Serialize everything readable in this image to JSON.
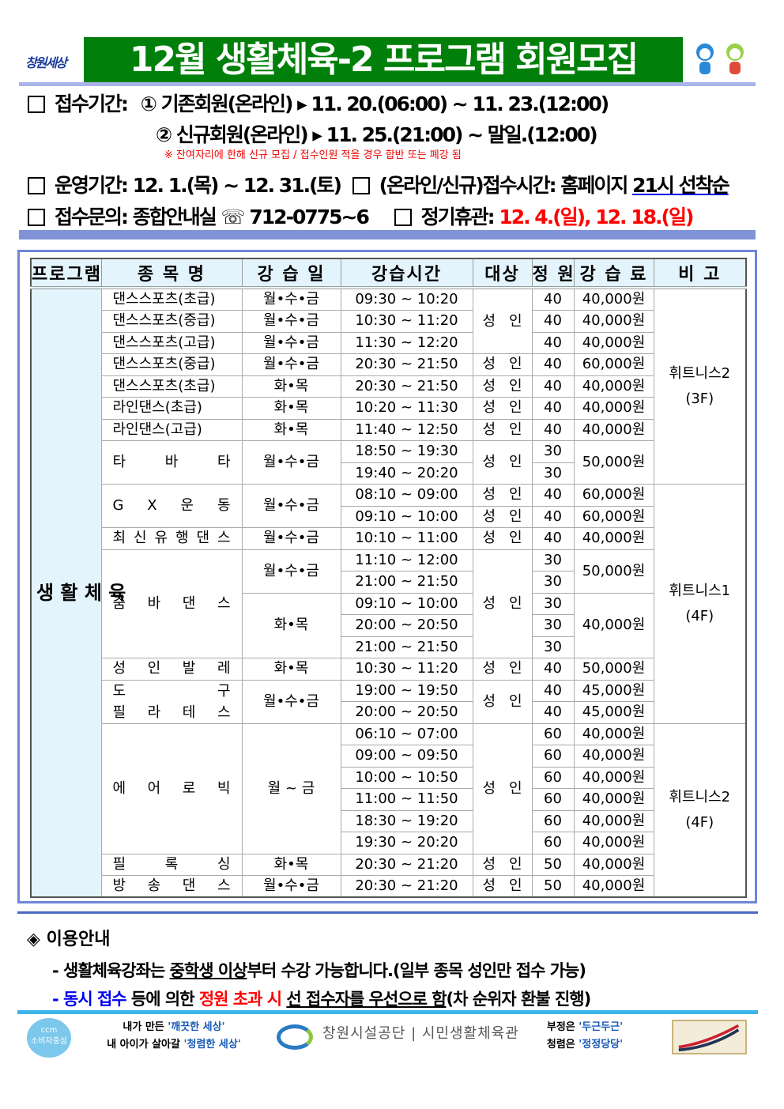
{
  "header": {
    "logo_text": "창원세상",
    "title": "12월 생활체육-2 프로그램 회원모집"
  },
  "info": {
    "reception_label": "접수기간:",
    "reception_1": "① 기존회원(온라인) ▸ 11. 20.(06:00) ~ 11. 23.(12:00)",
    "reception_2": "② 신규회원(온라인) ▸ 11. 25.(21:00) ~ 말일.(12:00)",
    "note": "※ 잔여자리에 한해 신규 모집 / 접수인원 적을 경우 합반 또는 폐강 됨",
    "operation_label": "운영기간:",
    "operation_value": "12. 1.(목) ~ 12. 31.(토)",
    "online_label": "(온라인/신규)접수시간:",
    "online_value": "홈페이지",
    "online_value_ul": "21시 선착순",
    "inquiry_label": "접수문의:",
    "inquiry_value": "종합안내실 ☏ 712-0775~6",
    "closed_label": "정기휴관:",
    "closed_value": "12. 4.(일), 12. 18.(일)"
  },
  "table": {
    "headers": [
      "프로그램",
      "종 목 명",
      "강 습 일",
      "강습시간",
      "대상",
      "정 원",
      "강 습 료",
      "비 고"
    ],
    "program": "생 활 체 육",
    "rows": [
      {
        "name": "댄스스포츠(초급)",
        "day": "월•수•금",
        "time": "09:30 ~ 10:20",
        "target": {
          "text": "성 인",
          "span": 3
        },
        "cap": "40",
        "fee": {
          "text": "40,000원",
          "span": 1
        },
        "note": {
          "text": [
            "휘트니스2",
            "(3F)"
          ],
          "span": 9
        }
      },
      {
        "name": "댄스스포츠(중급)",
        "day": "월•수•금",
        "time": "10:30 ~ 11:20",
        "cap": "40",
        "fee": {
          "text": "40,000원",
          "span": 1
        }
      },
      {
        "name": "댄스스포츠(고급)",
        "day": "월•수•금",
        "time": "11:30 ~ 12:20",
        "cap": "40",
        "fee": {
          "text": "40,000원",
          "span": 1
        }
      },
      {
        "name": "댄스스포츠(중급)",
        "day": "월•수•금",
        "time": "20:30 ~ 21:50",
        "target": {
          "text": "성 인",
          "span": 1
        },
        "cap": "40",
        "fee": {
          "text": "60,000원",
          "span": 1
        }
      },
      {
        "name": "댄스스포츠(초급)",
        "day": "화•목",
        "time": "20:30 ~ 21:50",
        "target": {
          "text": "성 인",
          "span": 1
        },
        "cap": "40",
        "fee": {
          "text": "40,000원",
          "span": 1
        }
      },
      {
        "name": "라인댄스(초급)",
        "day": "화•목",
        "time": "10:20 ~ 11:30",
        "target": {
          "text": "성 인",
          "span": 1
        },
        "cap": "40",
        "fee": {
          "text": "40,000원",
          "span": 1
        }
      },
      {
        "name": "라인댄스(고급)",
        "day": "화•목",
        "time": "11:40 ~ 12:50",
        "target": {
          "text": "성 인",
          "span": 1
        },
        "cap": "40",
        "fee": {
          "text": "40,000원",
          "span": 1
        }
      },
      {
        "name": {
          "text": "타 바 타",
          "span": 2
        },
        "day": {
          "text": "월•수•금",
          "span": 2
        },
        "time": "18:50 ~ 19:30",
        "target": {
          "text": "성 인",
          "span": 2
        },
        "cap": "30",
        "fee": {
          "text": "50,000원",
          "span": 2
        }
      },
      {
        "time": "19:40 ~ 20:20",
        "cap": "30"
      },
      {
        "name": {
          "text": "G X 운 동",
          "span": 2
        },
        "day": {
          "text": "월•수•금",
          "span": 2
        },
        "time": "08:10 ~ 09:00",
        "target": {
          "text": "성 인",
          "span": 1
        },
        "cap": "40",
        "fee": {
          "text": "60,000원",
          "span": 1
        },
        "note": {
          "text": [
            "휘트니스1",
            "(4F)"
          ],
          "span": 11
        }
      },
      {
        "time": "09:10 ~ 10:00",
        "target": {
          "text": "성 인",
          "span": 1
        },
        "cap": "40",
        "fee": {
          "text": "60,000원",
          "span": 1
        }
      },
      {
        "name": "최 신 유 행 댄 스",
        "day": "월•수•금",
        "time": "10:10 ~ 11:00",
        "target": {
          "text": "성 인",
          "span": 1
        },
        "cap": "40",
        "fee": {
          "text": "40,000원",
          "span": 1
        }
      },
      {
        "name": {
          "text": "줌 바 댄 스",
          "span": 5
        },
        "day": {
          "text": "월•수•금",
          "span": 2
        },
        "time": "11:10 ~ 12:00",
        "target": {
          "text": "성 인",
          "span": 5
        },
        "cap": "30",
        "fee": {
          "text": "50,000원",
          "span": 2
        }
      },
      {
        "time": "21:00 ~ 21:50",
        "cap": "30"
      },
      {
        "day": {
          "text": "화•목",
          "span": 3
        },
        "time": "09:10 ~ 10:00",
        "cap": "30",
        "fee": {
          "text": "40,000원",
          "span": 3
        }
      },
      {
        "time": "20:00 ~ 20:50",
        "cap": "30"
      },
      {
        "time": "21:00 ~ 21:50",
        "cap": "30"
      },
      {
        "name": "성 인 발 레",
        "day": "화•목",
        "time": "10:30 ~ 11:20",
        "target": {
          "text": "성 인",
          "span": 1
        },
        "cap": "40",
        "fee": {
          "text": "50,000원",
          "span": 1
        }
      },
      {
        "name": {
          "text": "도 구",
          "text2": "필 라 테 스",
          "span": 2
        },
        "day": {
          "text": "월•수•금",
          "span": 2
        },
        "time": "19:00 ~ 19:50",
        "target": {
          "text": "성 인",
          "span": 2
        },
        "cap": "40",
        "fee": {
          "text": "45,000원",
          "span": 1
        }
      },
      {
        "time": "20:00 ~ 20:50",
        "cap": "40",
        "fee": {
          "text": "45,000원",
          "span": 1
        }
      },
      {
        "name": {
          "text": "에 어 로 빅",
          "span": 6
        },
        "day": {
          "text": "월 ~ 금",
          "span": 6
        },
        "time": "06:10 ~ 07:00",
        "target": {
          "text": "성 인",
          "span": 6
        },
        "cap": "60",
        "fee": {
          "text": "40,000원",
          "span": 1
        },
        "note": {
          "text": [
            "휘트니스2",
            "(4F)"
          ],
          "span": 8
        }
      },
      {
        "time": "09:00 ~ 09:50",
        "cap": "60",
        "fee": {
          "text": "40,000원",
          "span": 1
        }
      },
      {
        "time": "10:00 ~ 10:50",
        "cap": "60",
        "fee": {
          "text": "40,000원",
          "span": 1
        }
      },
      {
        "time": "11:00 ~ 11:50",
        "cap": "60",
        "fee": {
          "text": "40,000원",
          "span": 1
        }
      },
      {
        "time": "18:30 ~ 19:20",
        "cap": "60",
        "fee": {
          "text": "40,000원",
          "span": 1
        }
      },
      {
        "time": "19:30 ~ 20:20",
        "cap": "60",
        "fee": {
          "text": "40,000원",
          "span": 1
        }
      },
      {
        "name": "필 록 싱",
        "day": "화•목",
        "time": "20:30 ~ 21:20",
        "target": {
          "text": "성 인",
          "span": 1
        },
        "cap": "50",
        "fee": {
          "text": "40,000원",
          "span": 1
        }
      },
      {
        "name": "방 송 댄 스",
        "day": "월•수•금",
        "time": "20:30 ~ 21:20",
        "target": {
          "text": "성 인",
          "span": 1
        },
        "cap": "50",
        "fee": {
          "text": "40,000원",
          "span": 1
        }
      }
    ]
  },
  "guide": {
    "title": "◈ 이용안내",
    "line1_a": "- 생활체육강좌는 ",
    "line1_ul": "중학생 이상",
    "line1_b": "부터 수강 가능합니다.(일부 종목 성인만 접수 가능)",
    "line2_dash": "- ",
    "line2_blue": "동시 접수",
    "line2_a": " 등에 의한 ",
    "line2_red": "정원 초과 시",
    "line2_sp": " ",
    "line2_ul": "선 접수자를 우선으로 함",
    "line2_b": "(차 순위자 환불 진행)"
  },
  "footer": {
    "ccm_1": "ccm",
    "ccm_2": "소비자중심",
    "slogan1_a": "내가 만든 ",
    "slogan1_b": "'깨끗한 세상'",
    "slogan2_a": "내 아이가 살아갈 ",
    "slogan2_b": "'청렴한 세상'",
    "corp": "창원시설공단 | 시민생활체육관",
    "slogan3_a": "부정은 ",
    "slogan3_b": "'두근두근'",
    "slogan4_a": "청렴은 ",
    "slogan4_b": "'정정당당'"
  },
  "colors": {
    "title_bg": "#00800a",
    "frame": "#6f86d6",
    "header_bg": "#e4f4fc",
    "accent_red": "#ff0000",
    "accent_blue": "#0000ee"
  }
}
